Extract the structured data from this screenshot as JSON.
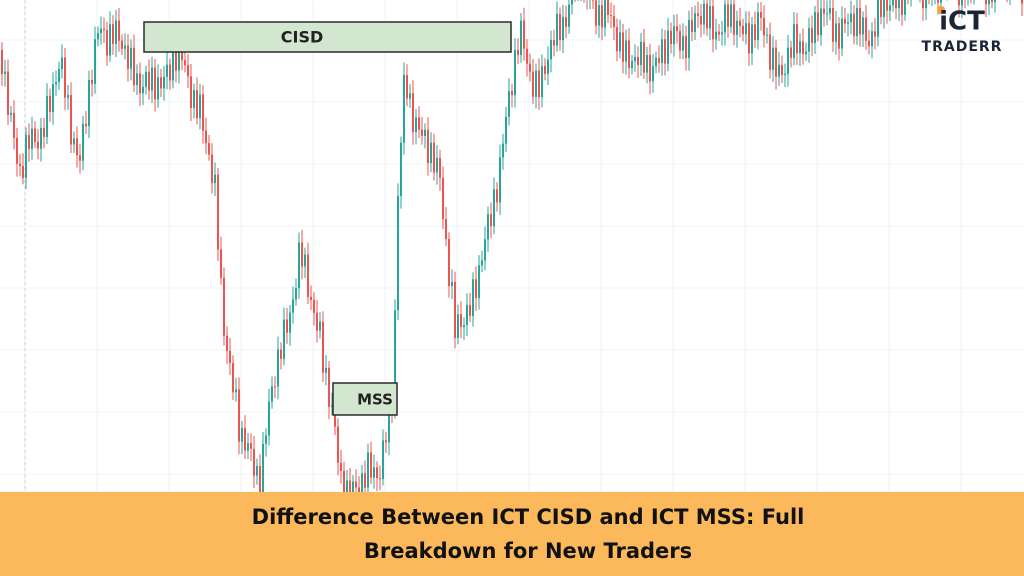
{
  "logo": {
    "mark": "iCT",
    "wordmark": "TRADERR"
  },
  "annotations": {
    "cisd": "CISD",
    "mss": "MSS"
  },
  "banner": {
    "title_line1": "Difference Between ICT CISD and ICT MSS: Full",
    "title_line2": "Breakdown for New Traders"
  }
}
